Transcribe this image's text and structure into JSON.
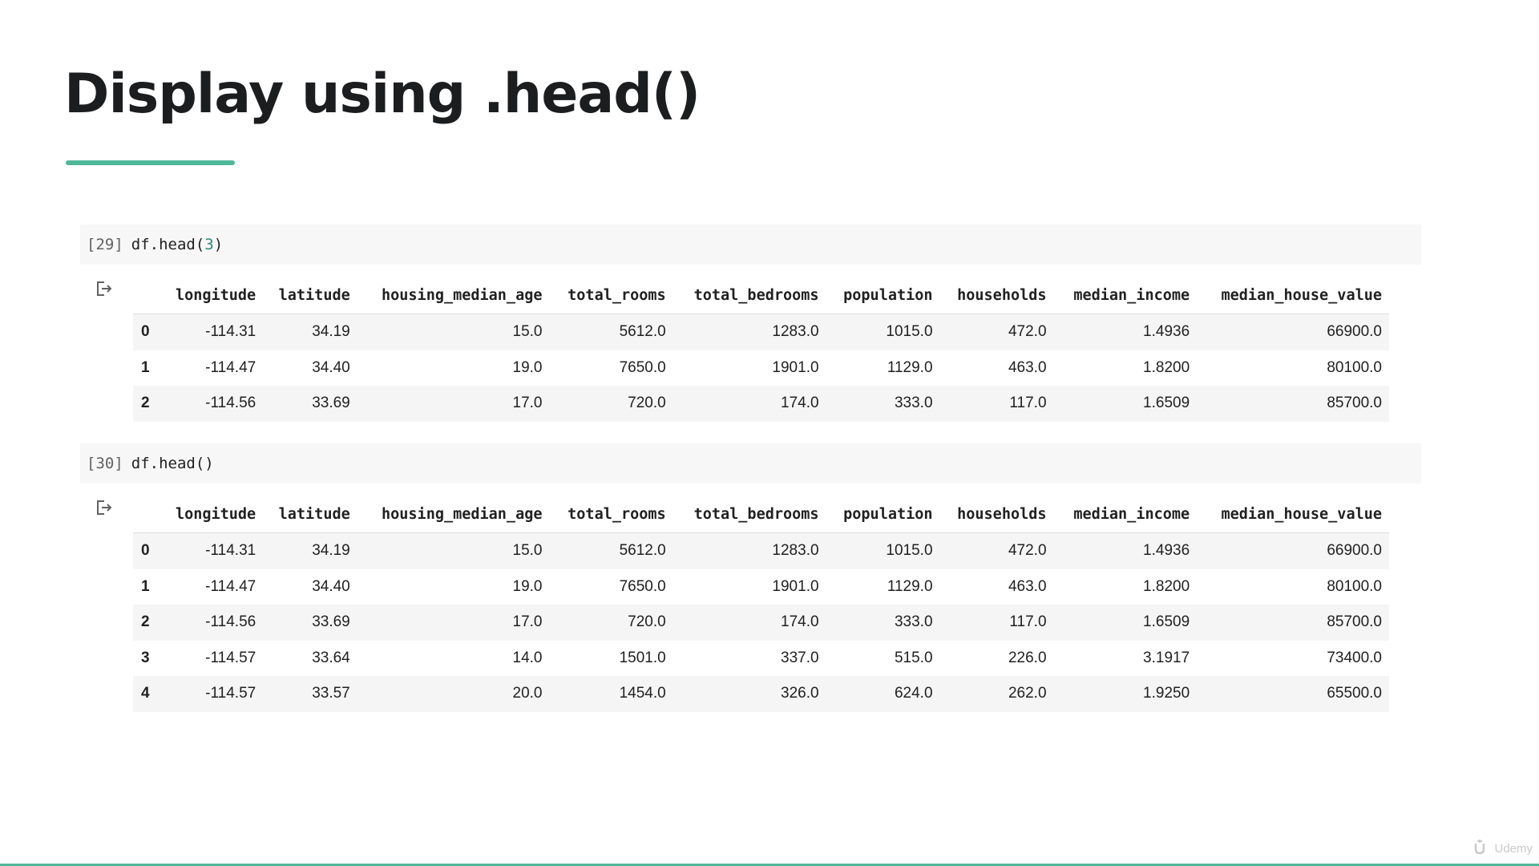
{
  "slide": {
    "title": "Display using .head()",
    "accent_color": "#4fb898"
  },
  "cells": [
    {
      "exec_count": "[29]",
      "code_prefix": "df.head(",
      "code_arg": "3",
      "code_suffix": ")",
      "columns": [
        "",
        "longitude",
        "latitude",
        "housing_median_age",
        "total_rooms",
        "total_bedrooms",
        "population",
        "households",
        "median_income",
        "median_house_value"
      ],
      "rows": [
        [
          "0",
          "-114.31",
          "34.19",
          "15.0",
          "5612.0",
          "1283.0",
          "1015.0",
          "472.0",
          "1.4936",
          "66900.0"
        ],
        [
          "1",
          "-114.47",
          "34.40",
          "19.0",
          "7650.0",
          "1901.0",
          "1129.0",
          "463.0",
          "1.8200",
          "80100.0"
        ],
        [
          "2",
          "-114.56",
          "33.69",
          "17.0",
          "720.0",
          "174.0",
          "333.0",
          "117.0",
          "1.6509",
          "85700.0"
        ]
      ]
    },
    {
      "exec_count": "[30]",
      "code_prefix": "df.head(",
      "code_arg": "",
      "code_suffix": ")",
      "columns": [
        "",
        "longitude",
        "latitude",
        "housing_median_age",
        "total_rooms",
        "total_bedrooms",
        "population",
        "households",
        "median_income",
        "median_house_value"
      ],
      "rows": [
        [
          "0",
          "-114.31",
          "34.19",
          "15.0",
          "5612.0",
          "1283.0",
          "1015.0",
          "472.0",
          "1.4936",
          "66900.0"
        ],
        [
          "1",
          "-114.47",
          "34.40",
          "19.0",
          "7650.0",
          "1901.0",
          "1129.0",
          "463.0",
          "1.8200",
          "80100.0"
        ],
        [
          "2",
          "-114.56",
          "33.69",
          "17.0",
          "720.0",
          "174.0",
          "333.0",
          "117.0",
          "1.6509",
          "85700.0"
        ],
        [
          "3",
          "-114.57",
          "33.64",
          "14.0",
          "1501.0",
          "337.0",
          "515.0",
          "226.0",
          "3.1917",
          "73400.0"
        ],
        [
          "4",
          "-114.57",
          "33.57",
          "20.0",
          "1454.0",
          "326.0",
          "624.0",
          "262.0",
          "1.9250",
          "65500.0"
        ]
      ]
    }
  ],
  "icons": {
    "output": "output-redirect-icon",
    "logo": "udemy-logo-icon"
  },
  "watermark": {
    "text": "Udemy"
  }
}
